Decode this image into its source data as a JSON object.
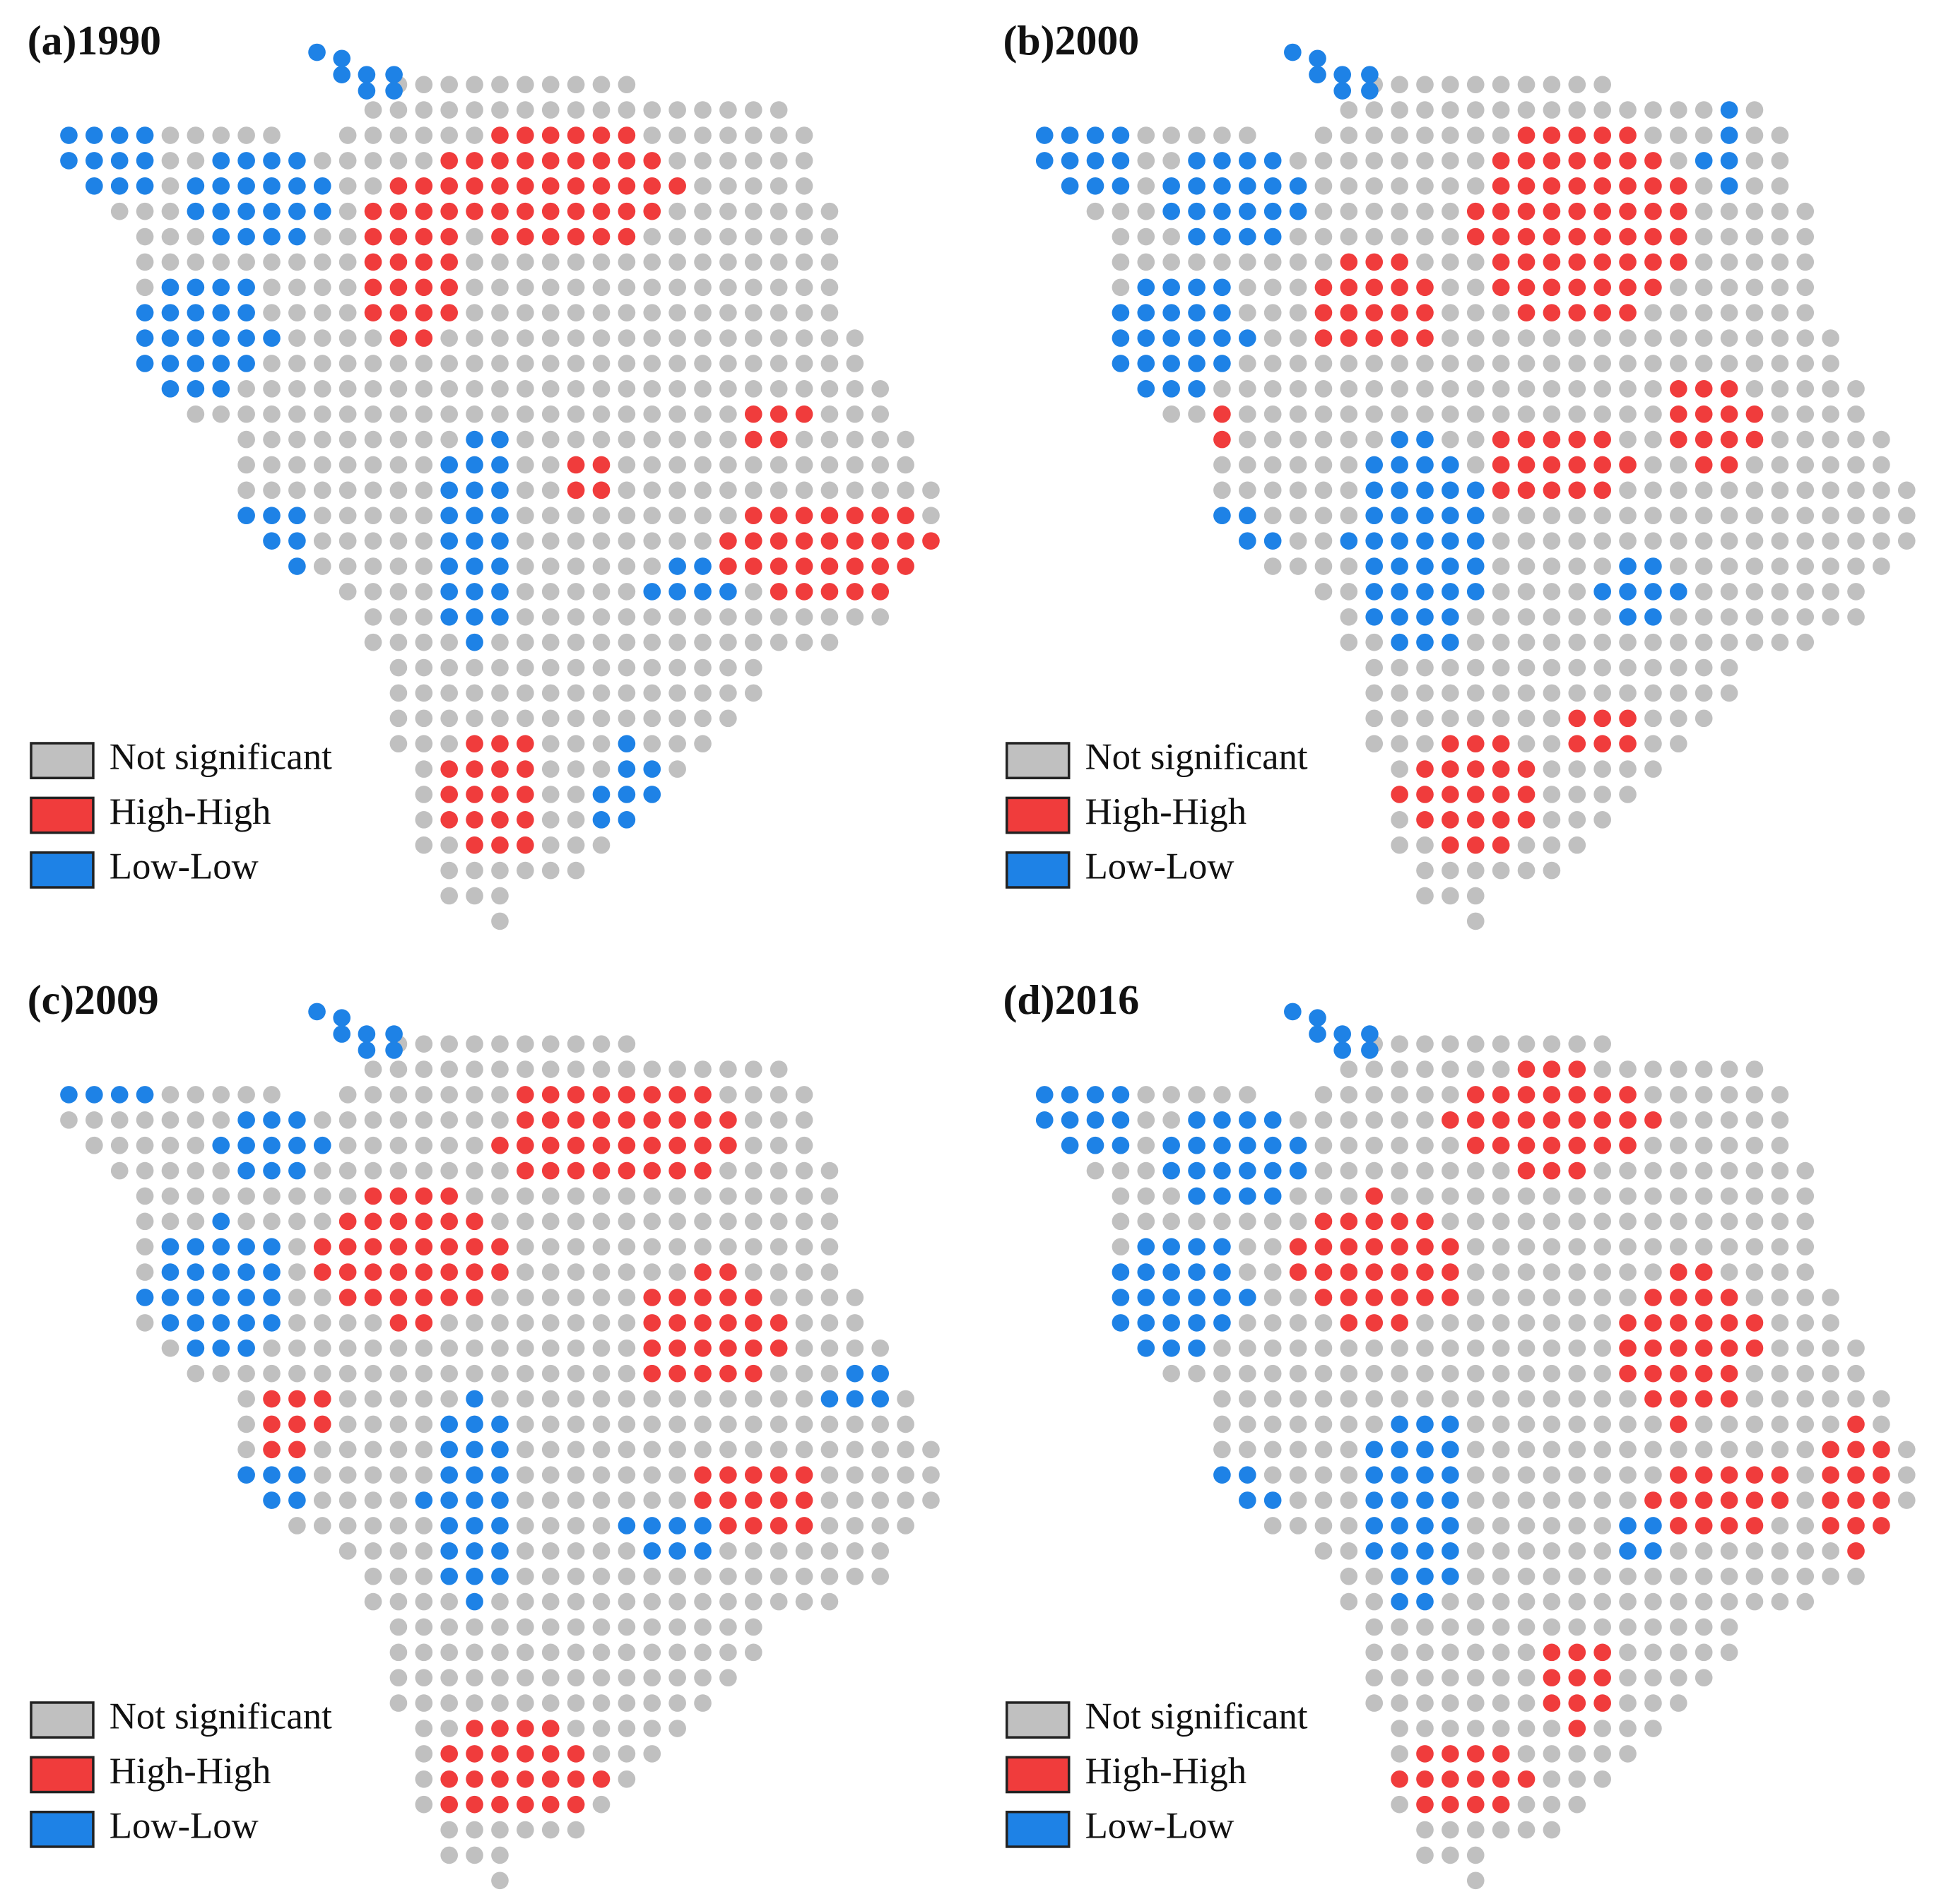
{
  "panels": [
    {
      "title": "(a)1990"
    },
    {
      "title": "(b)2000"
    },
    {
      "title": "(c)2009"
    },
    {
      "title": "(d)2016"
    }
  ],
  "legend": {
    "items": [
      {
        "label": "Not significant",
        "color": "#c0c0c0"
      },
      {
        "label": "High-High",
        "color": "#f03c3c"
      },
      {
        "label": "Low-Low",
        "color": "#1e82e6"
      }
    ]
  }
}
